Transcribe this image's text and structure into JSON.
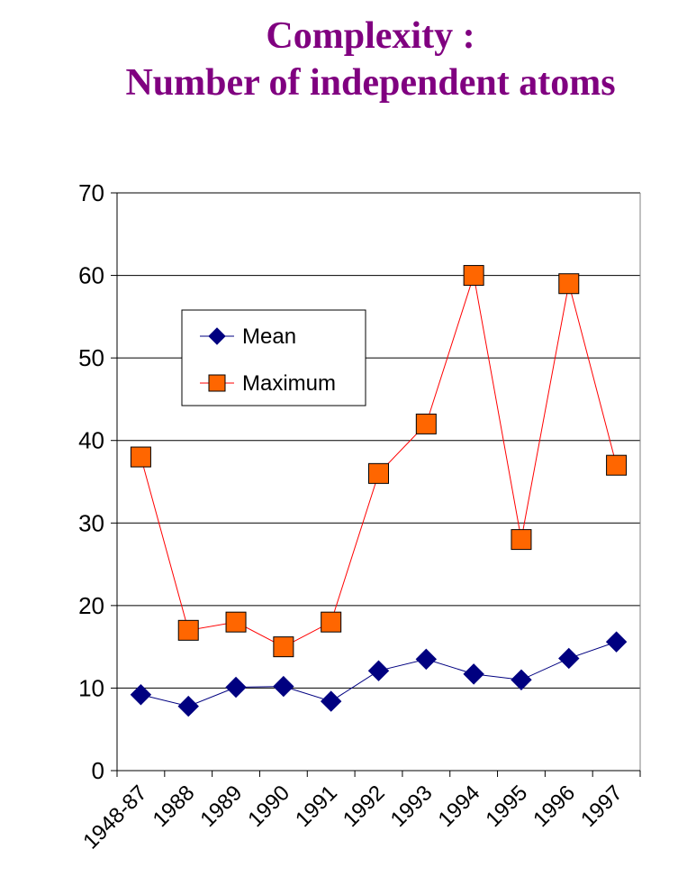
{
  "title_line1": "Complexity :",
  "title_line2": "Number of independent atoms",
  "chart_data": {
    "type": "line",
    "title": "Complexity : Number of independent atoms",
    "xlabel": "",
    "ylabel": "",
    "categories": [
      "1948-87",
      "1988",
      "1989",
      "1990",
      "1991",
      "1992",
      "1993",
      "1994",
      "1995",
      "1996",
      "1997"
    ],
    "ylim": [
      0,
      70
    ],
    "yticks": [
      0,
      10,
      20,
      30,
      40,
      50,
      60,
      70
    ],
    "grid": "horizontal",
    "legend_position": "upper-left inside plot",
    "series": [
      {
        "name": "Mean",
        "marker": "diamond",
        "color": "#000080",
        "values": [
          9.2,
          7.8,
          10.1,
          10.2,
          8.4,
          12.1,
          13.5,
          11.7,
          11.0,
          13.6,
          15.6
        ]
      },
      {
        "name": "Maximum",
        "marker": "square",
        "color": "#ff0000",
        "marker_fill": "#ff6600",
        "values": [
          38,
          17,
          18,
          15,
          18,
          36,
          42,
          60,
          28,
          59,
          37
        ]
      }
    ]
  }
}
